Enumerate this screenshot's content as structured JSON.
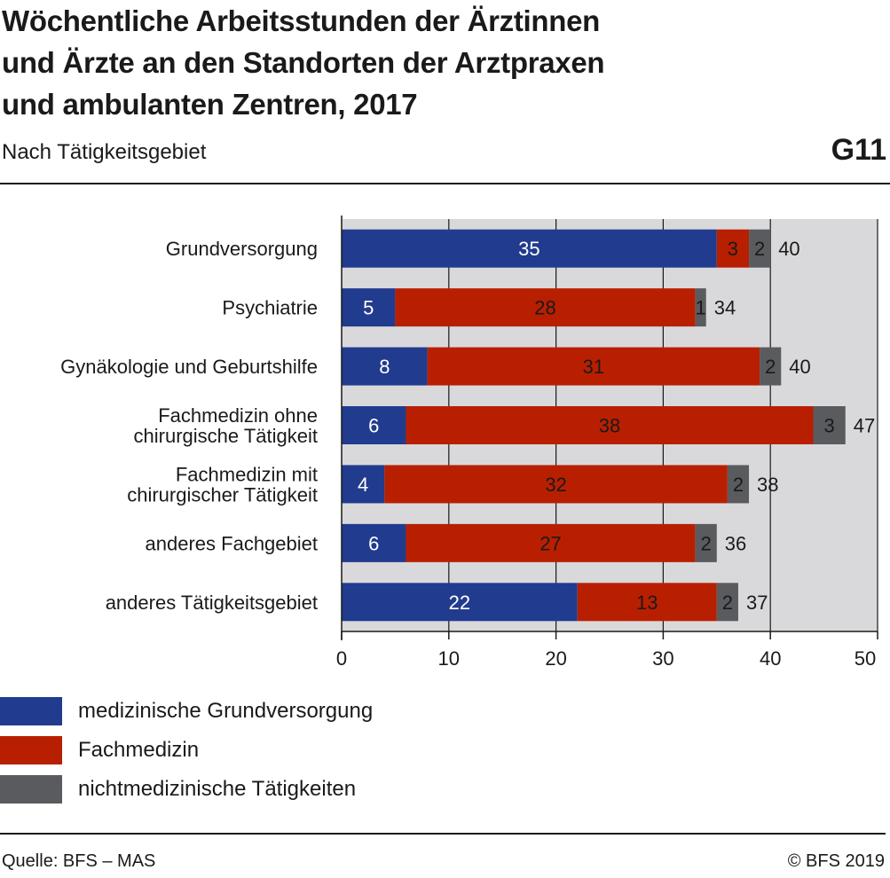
{
  "header": {
    "title_lines": [
      "Wöchentliche Arbeitsstunden der Ärztinnen",
      "und Ärzte an den Standorten der Arztpraxen",
      "und ambulanten Zentren, 2017"
    ],
    "subtitle": "Nach Tätigkeitsgebiet",
    "figure_code": "G11"
  },
  "footer": {
    "source": "Quelle: BFS – MAS",
    "copyright": "© BFS 2019"
  },
  "colors": {
    "grundversorgung": "#213b8e",
    "fachmedizin": "#b81f00",
    "nichtmedizinisch": "#5a5b5f",
    "plot_background": "#d9d9db",
    "text": "#1a1a1a"
  },
  "chart_data": {
    "type": "bar",
    "orientation": "horizontal",
    "stacked": true,
    "categories": [
      [
        "Grundversorgung"
      ],
      [
        "Psychiatrie"
      ],
      [
        "Gynäkologie und Geburtshilfe"
      ],
      [
        "Fachmedizin ohne",
        "chirurgische Tätigkeit"
      ],
      [
        "Fachmedizin mit",
        "chirurgischer Tätigkeit"
      ],
      [
        "anderes Fachgebiet"
      ],
      [
        "anderes Tätigkeitsgebiet"
      ]
    ],
    "series": [
      {
        "name": "medizinische Grundversorgung",
        "color": "#213b8e",
        "values": [
          35,
          5,
          8,
          6,
          4,
          6,
          22
        ]
      },
      {
        "name": "Fachmedizin",
        "color": "#b81f00",
        "values": [
          3,
          28,
          31,
          38,
          32,
          27,
          13
        ]
      },
      {
        "name": "nichtmedizinische Tätigkeiten",
        "color": "#5a5b5f",
        "values": [
          2,
          1,
          2,
          3,
          2,
          2,
          2
        ]
      }
    ],
    "totals": [
      40,
      34,
      40,
      47,
      38,
      36,
      37
    ],
    "xlim": [
      0,
      50
    ],
    "xticks": [
      0,
      10,
      20,
      30,
      40,
      50
    ],
    "grid": true,
    "legend_position": "bottom-left"
  }
}
